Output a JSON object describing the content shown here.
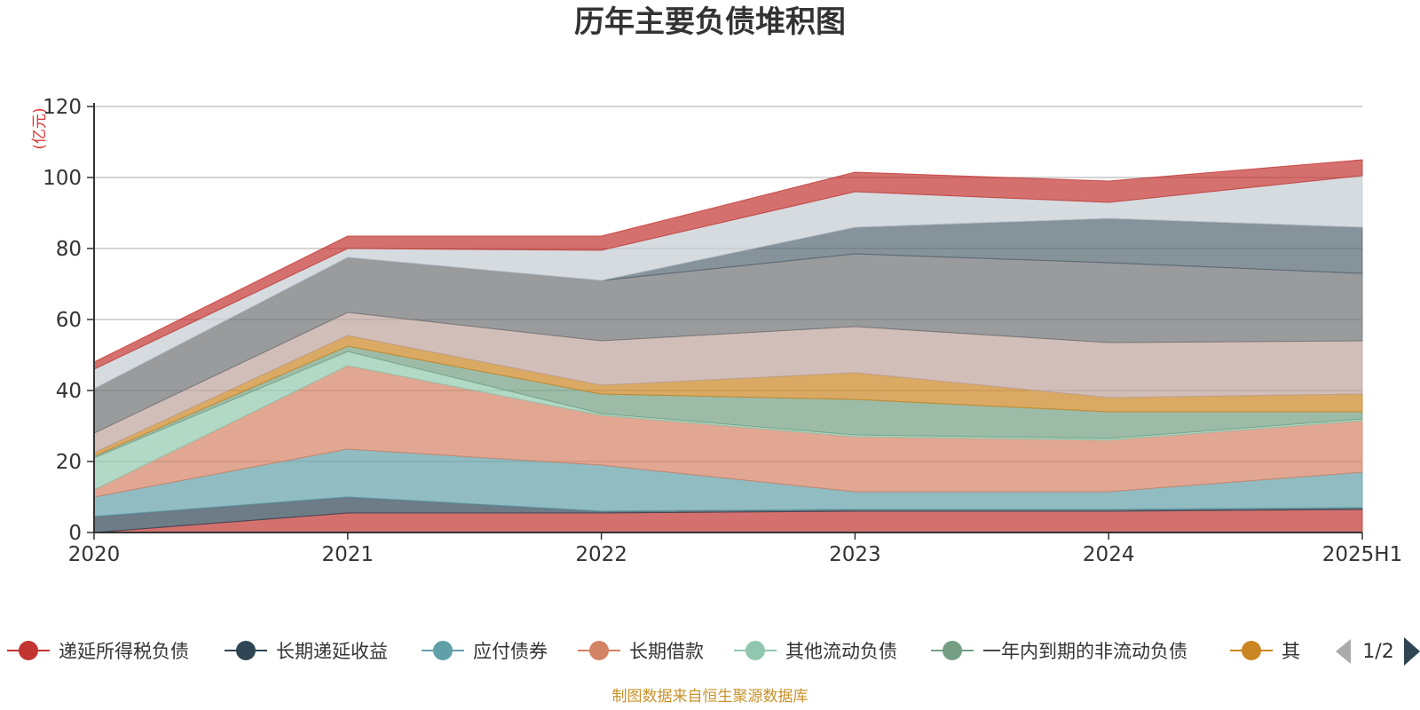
{
  "chart_data": {
    "type": "area",
    "stacked": true,
    "title": "历年主要负债堆积图",
    "y_unit": "(亿元)",
    "x": [
      "2020",
      "2021",
      "2022",
      "2023",
      "2024",
      "2025H1"
    ],
    "ylim": [
      0,
      120
    ],
    "yticks": [
      0,
      20,
      40,
      60,
      80,
      100,
      120
    ],
    "grid": true,
    "legend": {
      "position": "bottom",
      "page_indicator": "1/2"
    },
    "series": [
      {
        "name": "递延所得税负债",
        "color": "#c23531",
        "values": [
          0.0,
          5.5,
          5.5,
          6.0,
          6.0,
          6.5
        ]
      },
      {
        "name": "长期递延收益",
        "color": "#2f4554",
        "values": [
          4.5,
          4.5,
          0.5,
          0.5,
          0.5,
          0.5
        ]
      },
      {
        "name": "应付债券",
        "color": "#61a0a8",
        "values": [
          5.5,
          13.5,
          13.0,
          5.0,
          5.0,
          10.0
        ]
      },
      {
        "name": "长期借款",
        "color": "#d48265",
        "values": [
          2.0,
          23.5,
          14.0,
          15.5,
          14.5,
          14.5
        ]
      },
      {
        "name": "其他流动负债",
        "color": "#91c7ae",
        "values": [
          9.0,
          4.0,
          0.5,
          0.5,
          0.5,
          0.5
        ]
      },
      {
        "name": "一年内到期的非流动负债",
        "color": "#749f83",
        "values": [
          0.5,
          1.5,
          5.5,
          10.0,
          7.5,
          2.0
        ]
      },
      {
        "name": "其",
        "color": "#ca8622",
        "values": [
          1.0,
          3.0,
          2.5,
          7.5,
          4.0,
          5.0
        ]
      },
      {
        "name": "",
        "color": "#bda29a",
        "values": [
          5.5,
          6.5,
          12.5,
          13.0,
          15.5,
          15.0
        ]
      },
      {
        "name": "",
        "color": "#6e7074",
        "values": [
          12.5,
          15.5,
          17.0,
          20.5,
          22.5,
          19.0
        ]
      },
      {
        "name": "",
        "color": "#546570",
        "values": [
          0.0,
          0.0,
          0.0,
          7.5,
          12.5,
          13.0
        ]
      },
      {
        "name": "",
        "color": "#c4ccd3",
        "values": [
          5.5,
          2.5,
          8.5,
          10.0,
          4.5,
          14.5
        ]
      },
      {
        "name": "",
        "color": "#c23531",
        "values": [
          2.0,
          3.5,
          4.0,
          5.5,
          6.0,
          4.5
        ]
      }
    ]
  },
  "footer": {
    "source": "制图数据来自恒生聚源数据库"
  }
}
